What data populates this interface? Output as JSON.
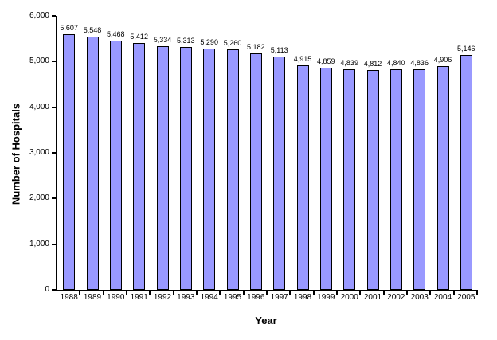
{
  "chart_data": {
    "type": "bar",
    "title": "",
    "xlabel": "Year",
    "ylabel": "Number of Hospitals",
    "categories": [
      "1988",
      "1989",
      "1990",
      "1991",
      "1992",
      "1993",
      "1994",
      "1995",
      "1996",
      "1997",
      "1998",
      "1999",
      "2000",
      "2001",
      "2002",
      "2003",
      "2004",
      "2005"
    ],
    "values": [
      5607,
      5548,
      5468,
      5412,
      5334,
      5313,
      5290,
      5260,
      5182,
      5113,
      4915,
      4859,
      4839,
      4812,
      4840,
      4836,
      4906,
      5146
    ],
    "value_labels": [
      "5,607",
      "5,548",
      "5,468",
      "5,412",
      "5,334",
      "5,313",
      "5,290",
      "5,260",
      "5,182",
      "5,113",
      "4,915",
      "4,859",
      "4,839",
      "4,812",
      "4,840",
      "4,836",
      "4,906",
      "5,146"
    ],
    "ylim": [
      0,
      6000
    ],
    "y_ticks": [
      {
        "value": 0,
        "label": "0"
      },
      {
        "value": 1000,
        "label": "1,000"
      },
      {
        "value": 2000,
        "label": "2,000"
      },
      {
        "value": 3000,
        "label": "3,000"
      },
      {
        "value": 4000,
        "label": "4,000"
      },
      {
        "value": 5000,
        "label": "5,000"
      },
      {
        "value": 6000,
        "label": "6,000"
      }
    ],
    "bar_color": "#9999FF",
    "bar_border_color": "#000000",
    "grid": false,
    "legend_position": "none",
    "data_labels": true
  }
}
